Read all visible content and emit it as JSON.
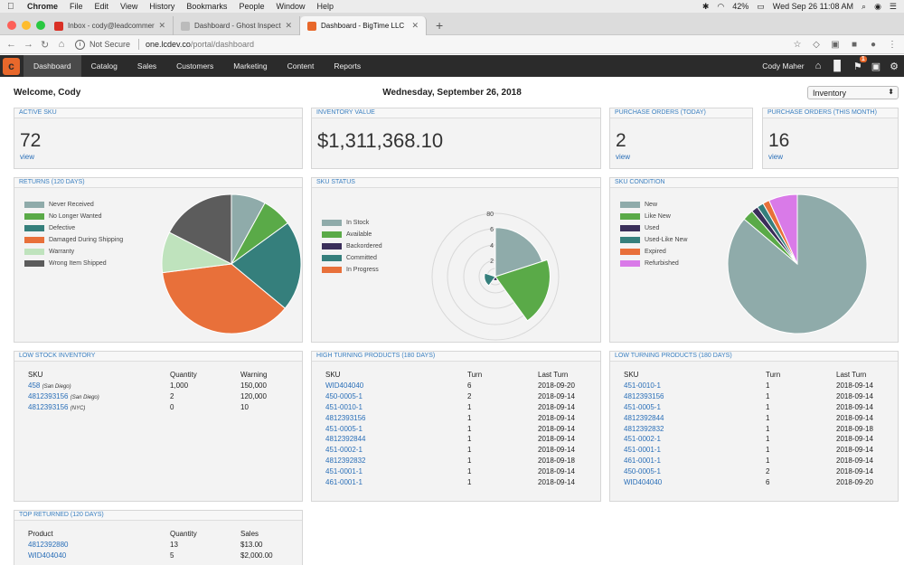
{
  "mac": {
    "menu": [
      "Chrome",
      "File",
      "Edit",
      "View",
      "History",
      "Bookmarks",
      "People",
      "Window",
      "Help"
    ],
    "battery": "42%",
    "clock": "Wed Sep 26  11:08 AM"
  },
  "browser": {
    "tabs": [
      {
        "title": "Inbox - cody@leadcommerce.c",
        "favcolor": "#d93025"
      },
      {
        "title": "Dashboard - Ghost Inspector",
        "favcolor": "#bbbbbb"
      },
      {
        "title": "Dashboard - BigTime LLC",
        "favcolor": "#e8682b"
      }
    ],
    "security": "Not Secure",
    "url_host": "one.lcdev.co",
    "url_path": "/portal/dashboard"
  },
  "nav": {
    "items": [
      "Dashboard",
      "Catalog",
      "Sales",
      "Customers",
      "Marketing",
      "Content",
      "Reports"
    ],
    "user": "Cody Maher",
    "alert_count": "1"
  },
  "dashboard": {
    "welcome": "Welcome, Cody",
    "date": "Wednesday, September 26, 2018",
    "selector": "Inventory"
  },
  "stats": {
    "active_sku": {
      "title": "ACTIVE SKU",
      "value": "72",
      "link": "view"
    },
    "inventory_value": {
      "title": "INVENTORY VALUE",
      "value": "$1,311,368.10"
    },
    "po_today": {
      "title": "PURCHASE ORDERS (TODAY)",
      "value": "2",
      "link": "view"
    },
    "po_month": {
      "title": "PURCHASE ORDERS (THIS MONTH)",
      "value": "16",
      "link": "view"
    }
  },
  "chart_data": [
    {
      "type": "pie",
      "title": "RETURNS (120 DAYS)",
      "categories": [
        "Never Received",
        "No Longer Wanted",
        "Defective",
        "Damaged During Shipping",
        "Warranty",
        "Wrong Item Shipped"
      ],
      "values": [
        8,
        7,
        21,
        37,
        9.5,
        17.5
      ],
      "colors": [
        "#8fabaa",
        "#5aaa48",
        "#357f7c",
        "#e8703a",
        "#bfe3bd",
        "#5c5c5c"
      ]
    },
    {
      "type": "polar_area",
      "title": "SKU STATUS",
      "categories": [
        "In Stock",
        "Available",
        "Backordered",
        "Committed",
        "In Progress"
      ],
      "values": [
        62,
        69,
        5,
        14,
        0
      ],
      "colors": [
        "#8fabaa",
        "#5aaa48",
        "#3a2e5a",
        "#357f7c",
        "#e8703a"
      ],
      "tick_labels": [
        "80",
        "6",
        "4",
        "2"
      ]
    },
    {
      "type": "pie",
      "title": "SKU CONDITION",
      "categories": [
        "New",
        "Like New",
        "Used",
        "Used-Like New",
        "Expired",
        "Refurbished"
      ],
      "values": [
        84,
        2.5,
        1.5,
        1.5,
        1.5,
        6.5
      ],
      "colors": [
        "#8fabaa",
        "#5aaa48",
        "#3a2e5a",
        "#357f7c",
        "#e8703a",
        "#d97ae8"
      ]
    }
  ],
  "low_stock": {
    "title": "LOW STOCK INVENTORY",
    "headers": [
      "SKU",
      "Quantity",
      "Warning"
    ],
    "rows": [
      {
        "sku": "458",
        "loc": "(San Diego)",
        "qty": "1,000",
        "warn": "150,000"
      },
      {
        "sku": "4812393156",
        "loc": "(San Diego)",
        "qty": "2",
        "warn": "120,000"
      },
      {
        "sku": "4812393156",
        "loc": "(NYC)",
        "qty": "0",
        "warn": "10"
      }
    ]
  },
  "high_turning": {
    "title": "HIGH TURNING PRODUCTS (180 DAYS)",
    "headers": [
      "SKU",
      "Turn",
      "Last Turn"
    ],
    "rows": [
      {
        "sku": "WID404040",
        "turn": "6",
        "last": "2018-09-20"
      },
      {
        "sku": "450-0005-1",
        "turn": "2",
        "last": "2018-09-14"
      },
      {
        "sku": "451-0010-1",
        "turn": "1",
        "last": "2018-09-14"
      },
      {
        "sku": "4812393156",
        "turn": "1",
        "last": "2018-09-14"
      },
      {
        "sku": "451-0005-1",
        "turn": "1",
        "last": "2018-09-14"
      },
      {
        "sku": "4812392844",
        "turn": "1",
        "last": "2018-09-14"
      },
      {
        "sku": "451-0002-1",
        "turn": "1",
        "last": "2018-09-14"
      },
      {
        "sku": "4812392832",
        "turn": "1",
        "last": "2018-09-18"
      },
      {
        "sku": "451-0001-1",
        "turn": "1",
        "last": "2018-09-14"
      },
      {
        "sku": "461-0001-1",
        "turn": "1",
        "last": "2018-09-14"
      }
    ]
  },
  "low_turning": {
    "title": "LOW TURNING PRODUCTS (180 DAYS)",
    "headers": [
      "SKU",
      "Turn",
      "Last Turn"
    ],
    "rows": [
      {
        "sku": "451-0010-1",
        "turn": "1",
        "last": "2018-09-14"
      },
      {
        "sku": "4812393156",
        "turn": "1",
        "last": "2018-09-14"
      },
      {
        "sku": "451-0005-1",
        "turn": "1",
        "last": "2018-09-14"
      },
      {
        "sku": "4812392844",
        "turn": "1",
        "last": "2018-09-14"
      },
      {
        "sku": "4812392832",
        "turn": "1",
        "last": "2018-09-18"
      },
      {
        "sku": "451-0002-1",
        "turn": "1",
        "last": "2018-09-14"
      },
      {
        "sku": "451-0001-1",
        "turn": "1",
        "last": "2018-09-14"
      },
      {
        "sku": "461-0001-1",
        "turn": "1",
        "last": "2018-09-14"
      },
      {
        "sku": "450-0005-1",
        "turn": "2",
        "last": "2018-09-14"
      },
      {
        "sku": "WID404040",
        "turn": "6",
        "last": "2018-09-20"
      }
    ]
  },
  "top_returned": {
    "title": "TOP RETURNED (120 DAYS)",
    "headers": [
      "Product",
      "Quantity",
      "Sales"
    ],
    "rows": [
      {
        "sku": "4812392880",
        "qty": "13",
        "sales": "$13.00"
      },
      {
        "sku": "WID404040",
        "qty": "5",
        "sales": "$2,000.00"
      }
    ]
  }
}
